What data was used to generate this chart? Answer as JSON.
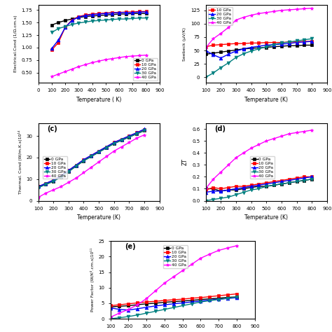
{
  "temps": [
    100,
    150,
    200,
    250,
    300,
    350,
    400,
    450,
    500,
    550,
    600,
    650,
    700,
    750,
    800
  ],
  "labels": [
    "0 GPa",
    "10 GPa",
    "20 GPa",
    "30 GPa",
    "40 GPa"
  ],
  "colors": [
    "black",
    "red",
    "blue",
    "teal",
    "magenta"
  ],
  "markers": [
    "s",
    "s",
    "^",
    "v",
    "*"
  ],
  "elec_cond": [
    [
      1.45,
      1.5,
      1.54,
      1.57,
      1.6,
      1.62,
      1.63,
      1.64,
      1.65,
      1.66,
      1.67,
      1.67,
      1.68,
      1.68,
      1.68
    ],
    [
      0.95,
      1.1,
      1.4,
      1.55,
      1.62,
      1.65,
      1.67,
      1.68,
      1.69,
      1.7,
      1.7,
      1.71,
      1.71,
      1.72,
      1.72
    ],
    [
      0.98,
      1.15,
      1.4,
      1.54,
      1.61,
      1.64,
      1.66,
      1.67,
      1.68,
      1.69,
      1.7,
      1.7,
      1.7,
      1.71,
      1.71
    ],
    [
      1.3,
      1.38,
      1.42,
      1.46,
      1.49,
      1.51,
      1.53,
      1.54,
      1.55,
      1.56,
      1.57,
      1.57,
      1.58,
      1.59,
      1.59
    ],
    [
      0.42,
      0.47,
      0.52,
      0.57,
      0.62,
      0.66,
      0.7,
      0.73,
      0.76,
      0.78,
      0.8,
      0.82,
      0.83,
      0.84,
      0.85
    ]
  ],
  "seebeck": [
    [
      43,
      45,
      47,
      49,
      51,
      53,
      54,
      55,
      56,
      57,
      58,
      59,
      59,
      60,
      60
    ],
    [
      57,
      60,
      61,
      62,
      63,
      63,
      64,
      64,
      65,
      65,
      65,
      66,
      66,
      67,
      67
    ],
    [
      50,
      42,
      36,
      43,
      49,
      53,
      56,
      58,
      60,
      61,
      62,
      63,
      65,
      66,
      67
    ],
    [
      0,
      8,
      18,
      27,
      37,
      44,
      49,
      53,
      57,
      61,
      64,
      66,
      68,
      70,
      72
    ],
    [
      55,
      72,
      82,
      93,
      107,
      112,
      116,
      119,
      121,
      123,
      125,
      126,
      127,
      128,
      129
    ]
  ],
  "therm_cond": [
    [
      6.5,
      7.5,
      9.0,
      11.0,
      13.5,
      16.0,
      18.5,
      20.5,
      22.5,
      24.5,
      26.5,
      28.0,
      29.5,
      31.0,
      32.5
    ],
    [
      6.5,
      8.0,
      9.5,
      11.5,
      14.0,
      16.5,
      19.0,
      21.0,
      23.0,
      25.0,
      27.0,
      28.5,
      30.0,
      31.5,
      33.0
    ],
    [
      6.5,
      8.0,
      9.5,
      11.5,
      14.0,
      16.5,
      19.0,
      21.0,
      23.0,
      25.0,
      27.0,
      28.5,
      30.0,
      31.5,
      33.2
    ],
    [
      6.0,
      7.5,
      9.0,
      11.0,
      13.5,
      16.0,
      18.5,
      20.5,
      22.5,
      24.5,
      26.5,
      28.0,
      29.5,
      31.0,
      32.5
    ],
    [
      1.5,
      3.5,
      5.0,
      6.5,
      8.5,
      10.5,
      13.0,
      15.5,
      18.0,
      20.5,
      23.0,
      25.0,
      27.0,
      29.0,
      30.5
    ]
  ],
  "zt": [
    [
      0.1,
      0.1,
      0.08,
      0.09,
      0.09,
      0.1,
      0.11,
      0.12,
      0.12,
      0.13,
      0.14,
      0.15,
      0.16,
      0.17,
      0.18
    ],
    [
      0.09,
      0.11,
      0.1,
      0.11,
      0.12,
      0.12,
      0.13,
      0.14,
      0.15,
      0.16,
      0.17,
      0.18,
      0.19,
      0.2,
      0.2
    ],
    [
      0.07,
      0.08,
      0.08,
      0.09,
      0.1,
      0.11,
      0.12,
      0.13,
      0.14,
      0.15,
      0.16,
      0.17,
      0.18,
      0.19,
      0.2
    ],
    [
      0.0,
      0.01,
      0.02,
      0.03,
      0.05,
      0.07,
      0.09,
      0.1,
      0.12,
      0.13,
      0.14,
      0.15,
      0.16,
      0.17,
      0.18
    ],
    [
      0.1,
      0.18,
      0.24,
      0.3,
      0.36,
      0.4,
      0.44,
      0.47,
      0.5,
      0.52,
      0.54,
      0.56,
      0.57,
      0.58,
      0.59
    ]
  ],
  "power_factor": [
    [
      3.8,
      4.0,
      4.2,
      4.5,
      4.8,
      5.0,
      5.3,
      5.5,
      5.7,
      5.9,
      6.2,
      6.4,
      6.6,
      6.9,
      7.0
    ],
    [
      4.2,
      4.5,
      4.8,
      5.1,
      5.4,
      5.6,
      5.9,
      6.1,
      6.3,
      6.6,
      6.8,
      7.1,
      7.4,
      7.7,
      8.0
    ],
    [
      3.5,
      3.0,
      2.8,
      3.2,
      3.7,
      4.1,
      4.5,
      4.8,
      5.1,
      5.4,
      5.7,
      6.0,
      6.3,
      6.5,
      6.8
    ],
    [
      0.0,
      0.3,
      0.7,
      1.2,
      1.8,
      2.4,
      3.0,
      3.6,
      4.2,
      4.8,
      5.4,
      5.8,
      6.2,
      6.6,
      7.0
    ],
    [
      0.5,
      1.8,
      3.0,
      4.5,
      6.5,
      9.0,
      11.5,
      13.5,
      15.5,
      17.5,
      19.5,
      20.8,
      22.0,
      22.8,
      23.5
    ]
  ],
  "elec_ylabel": "Electrical.Cond (1/Ω.cm.s)",
  "seebeck_ylabel": "Seebeck (μV/K)",
  "therm_ylabel": "Thermal. Cond (W/m.K.s)10¹⁴",
  "zt_ylabel": "ZT",
  "pf_ylabel": "Power Factor (W/K².cm.s)10¹¹",
  "xlabel_space": "Temperature ( K)",
  "xlabel_nospace": "Temperature (K)",
  "elec_ylim": [
    0.3,
    1.85
  ],
  "seebeck_ylim": [
    -10,
    135
  ],
  "therm_ylim": [
    0,
    36
  ],
  "zt_ylim": [
    0.0,
    0.65
  ],
  "pf_ylim": [
    0,
    25
  ],
  "xlim_a": [
    0,
    900
  ],
  "xlim_bde": [
    100,
    900
  ],
  "xticks_a": [
    0,
    100,
    200,
    300,
    400,
    500,
    600,
    700,
    800,
    900
  ],
  "xticks_bde": [
    100,
    200,
    300,
    400,
    500,
    600,
    700,
    800,
    900
  ],
  "elec_legend_loc": "lower right",
  "other_legend_loc": "upper left",
  "legend_b_labels": [
    "10 GPa",
    "20 GPa",
    "30 GPa",
    "40 GPa"
  ],
  "legend_b_colors": [
    "red",
    "blue",
    "teal",
    "magenta"
  ],
  "legend_b_markers": [
    "s",
    "^",
    "v",
    "*"
  ]
}
